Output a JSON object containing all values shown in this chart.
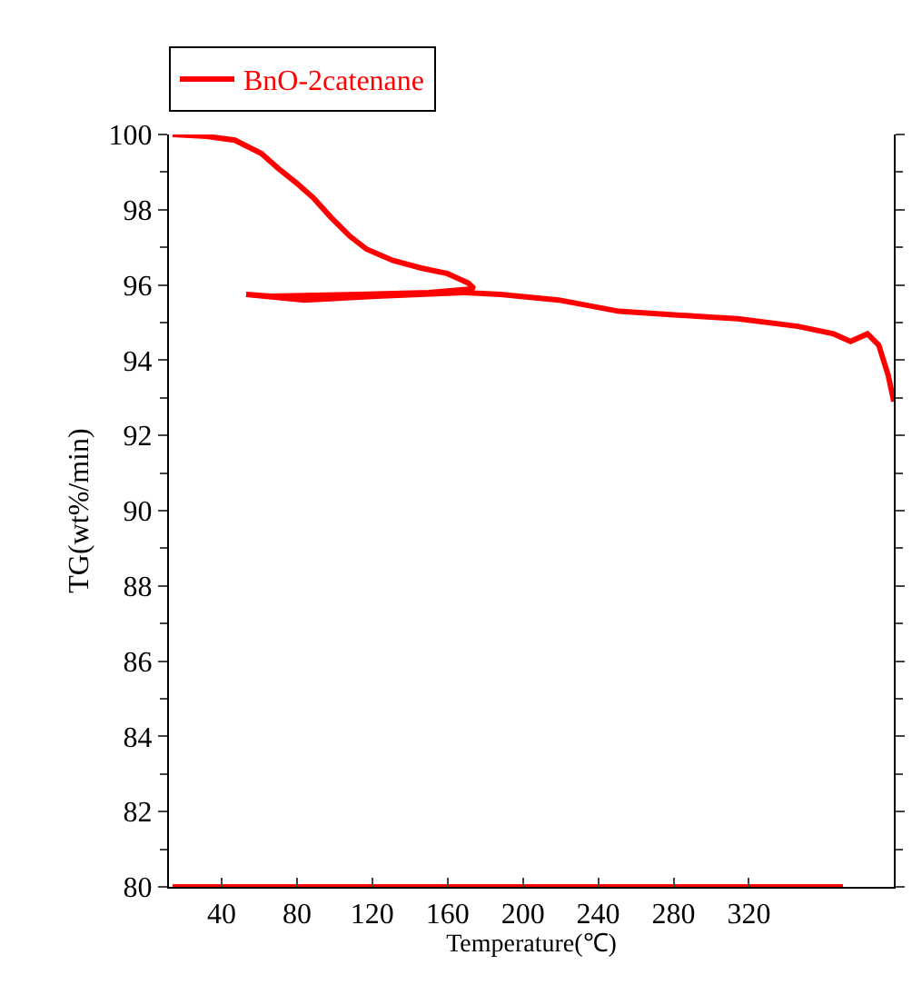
{
  "chart_data": {
    "type": "line",
    "xlabel": "Temperature(℃)",
    "ylabel": "TG(wt%/min)",
    "xlim": [
      12,
      397
    ],
    "xticks": [
      40,
      80,
      120,
      160,
      200,
      240,
      280,
      320
    ],
    "ylim": [
      80,
      100
    ],
    "yticks": [
      80,
      82,
      84,
      86,
      88,
      90,
      92,
      94,
      96,
      98,
      100
    ],
    "legend": "top left",
    "marker": "none",
    "line_style": "solid",
    "series": [
      {
        "name": "BnO-2catenane",
        "color": "#ff0000",
        "x": [
          14,
          32,
          47,
          61,
          70,
          80,
          89,
          98,
          108,
          117,
          131,
          146,
          160,
          171,
          174,
          150,
          113,
          66,
          53,
          84,
          122,
          169,
          188,
          219,
          251,
          282,
          314,
          346,
          365,
          374,
          383,
          389,
          394,
          397
        ],
        "values": [
          100,
          99.95,
          99.85,
          99.5,
          99.1,
          98.7,
          98.3,
          97.8,
          97.3,
          96.95,
          96.65,
          96.45,
          96.3,
          96.05,
          95.9,
          95.8,
          95.75,
          95.7,
          95.75,
          95.6,
          95.7,
          95.8,
          95.75,
          95.6,
          95.3,
          95.2,
          95.1,
          94.9,
          94.7,
          94.5,
          94.7,
          94.4,
          93.6,
          92.9
        ]
      },
      {
        "color": "#ff0000",
        "x": [
          14,
          100,
          200,
          300,
          370
        ],
        "values": [
          80,
          80,
          80,
          80,
          80
        ]
      }
    ]
  }
}
